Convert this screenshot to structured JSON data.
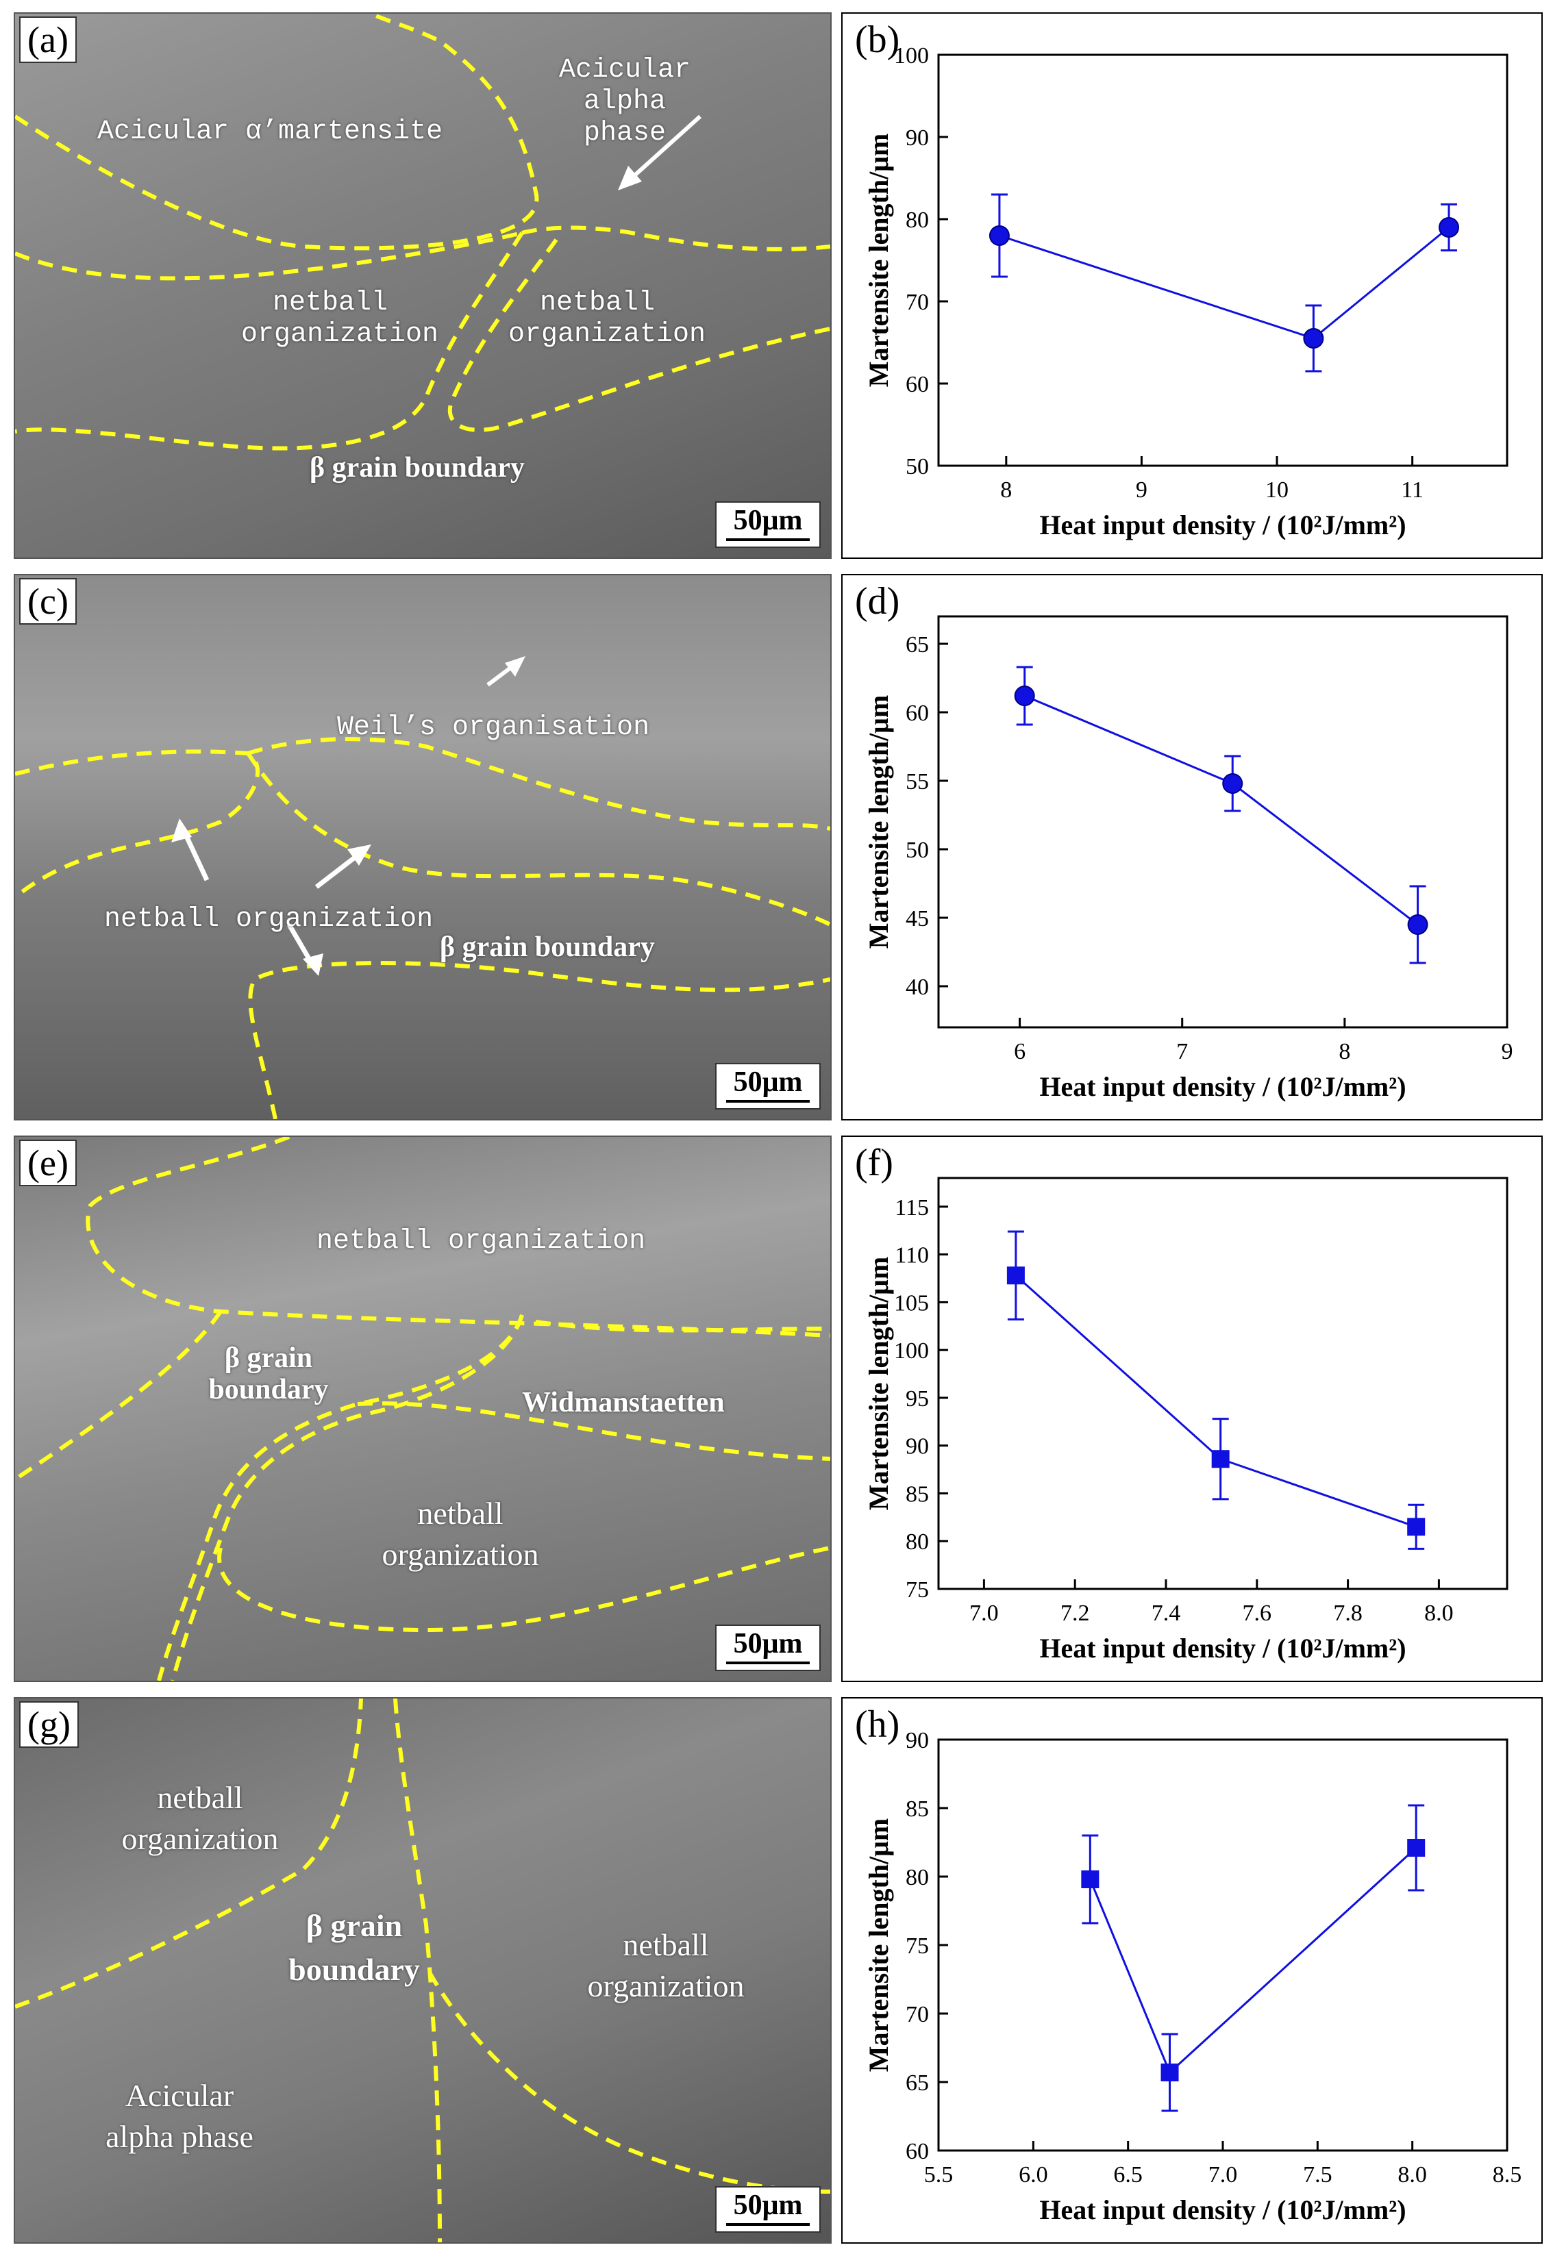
{
  "panels": [
    {
      "label": "(a)",
      "scale_bar": "50μm",
      "annotations": [
        "Acicular α’martensite",
        "Acicular alpha phase",
        "netball organization",
        "netball organization",
        "β grain boundary"
      ]
    },
    {
      "label": "(c)",
      "scale_bar": "50μm",
      "annotations": [
        "Weil’s organisation",
        "netball organization",
        "β grain boundary"
      ]
    },
    {
      "label": "(e)",
      "scale_bar": "50μm",
      "annotations": [
        "netball organization",
        "β grain boundary",
        "Widmanstaetten",
        "netball organization"
      ]
    },
    {
      "label": "(g)",
      "scale_bar": "50μm",
      "annotations": [
        "netball organization",
        "β grain boundary",
        "netball organization",
        "Acicular alpha phase"
      ]
    }
  ],
  "colors": {
    "line": "#1010e0",
    "boundary": "#ffff22",
    "arrow": "#ffffff"
  },
  "chart_data": [
    {
      "panel": "(b)",
      "type": "line",
      "marker": "circle",
      "xlabel": "Heat input density / (10²J/mm²)",
      "ylabel": "Martensite length/μm",
      "xlim": [
        7.5,
        11.7
      ],
      "ylim": [
        50,
        100
      ],
      "xticks": [
        8,
        9,
        10,
        11
      ],
      "yticks": [
        50,
        60,
        70,
        80,
        90,
        100
      ],
      "x": [
        7.95,
        10.27,
        11.27
      ],
      "y": [
        78.0,
        65.5,
        79.0
      ],
      "err": [
        5.0,
        4.0,
        2.8
      ]
    },
    {
      "panel": "(d)",
      "type": "line",
      "marker": "circle",
      "xlabel": "Heat input density / (10²J/mm²)",
      "ylabel": "Martensite length/μm",
      "xlim": [
        5.5,
        9.0
      ],
      "ylim": [
        37,
        67
      ],
      "xticks": [
        6,
        7,
        8,
        9
      ],
      "yticks": [
        40,
        45,
        50,
        55,
        60,
        65
      ],
      "x": [
        6.03,
        7.31,
        8.45
      ],
      "y": [
        61.2,
        54.8,
        44.5
      ],
      "err": [
        2.1,
        2.0,
        2.8
      ]
    },
    {
      "panel": "(f)",
      "type": "line",
      "marker": "square",
      "xlabel": "Heat input density / (10²J/mm²)",
      "ylabel": "Martensite length/μm",
      "xlim": [
        6.9,
        8.15
      ],
      "ylim": [
        75,
        118
      ],
      "xticks": [
        7.0,
        7.2,
        7.4,
        7.6,
        7.8,
        8.0
      ],
      "yticks": [
        75,
        80,
        85,
        90,
        95,
        100,
        105,
        110,
        115
      ],
      "x": [
        7.07,
        7.52,
        7.95
      ],
      "y": [
        107.8,
        88.6,
        81.5
      ],
      "err": [
        4.6,
        4.2,
        2.3
      ]
    },
    {
      "panel": "(h)",
      "type": "line",
      "marker": "square",
      "xlabel": "Heat input density / (10²J/mm²)",
      "ylabel": "Martensite length/μm",
      "xlim": [
        5.5,
        8.5
      ],
      "ylim": [
        60,
        90
      ],
      "xticks": [
        5.5,
        6.0,
        6.5,
        7.0,
        7.5,
        8.0,
        8.5
      ],
      "yticks": [
        60,
        65,
        70,
        75,
        80,
        85,
        90
      ],
      "x": [
        6.3,
        6.72,
        8.02
      ],
      "y": [
        79.8,
        65.7,
        82.1
      ],
      "err": [
        3.2,
        2.8,
        3.1
      ]
    }
  ]
}
